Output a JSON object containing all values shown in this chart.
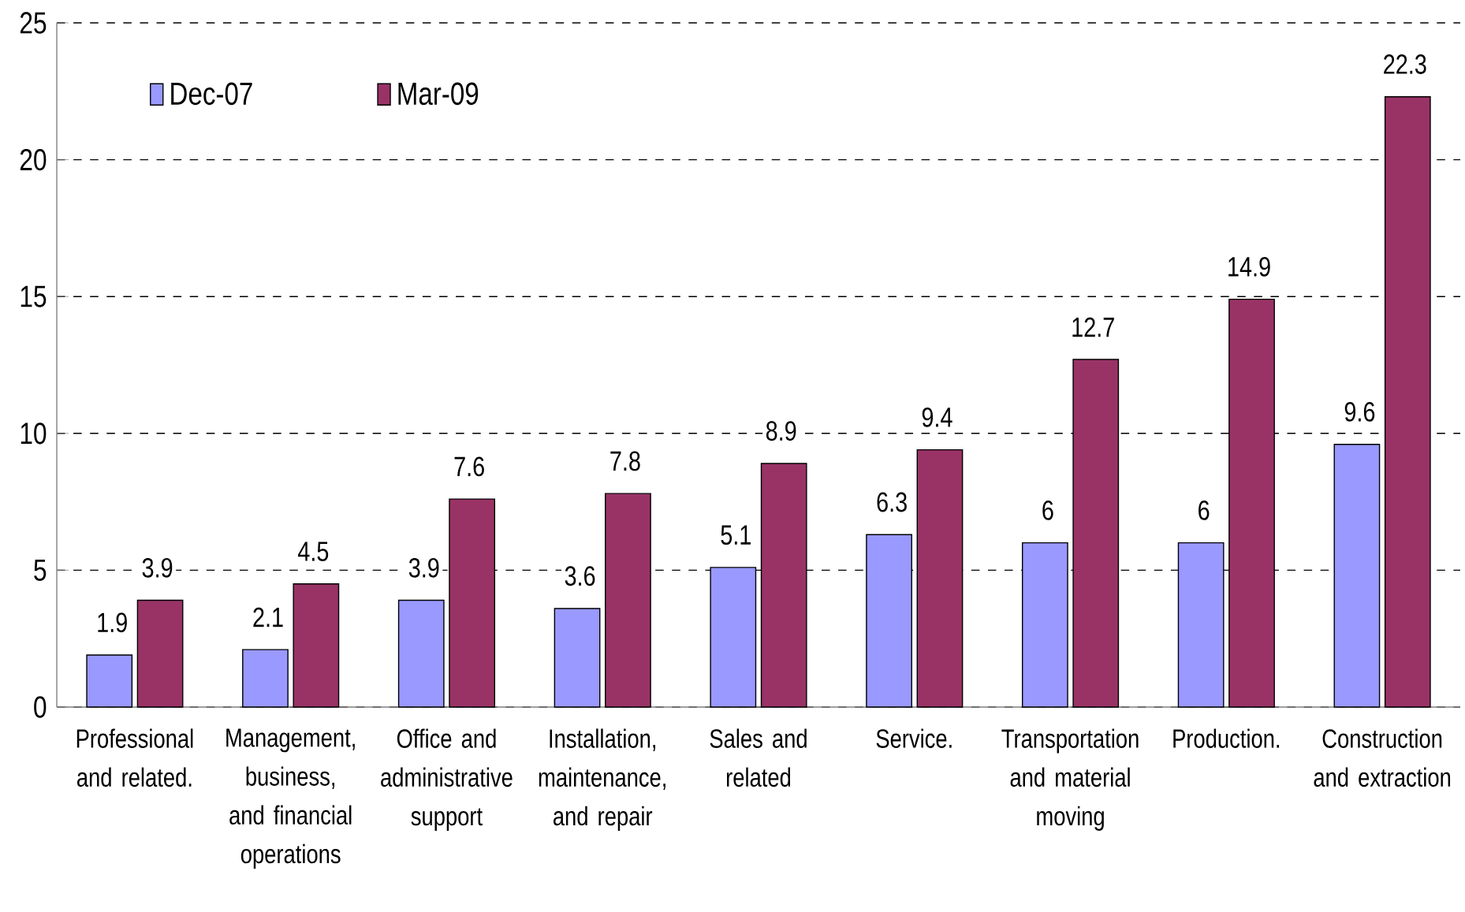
{
  "chart_data": {
    "type": "bar",
    "categories": [
      "Professional and related.",
      "Management, business, and financial operations",
      "Office and administrative support",
      "Installation, maintenance, and repair",
      "Sales and related",
      "Service.",
      "Transportation and material moving",
      "Production.",
      "Construction and extraction"
    ],
    "series": [
      {
        "name": "Dec-07",
        "color": "#9999ff",
        "values": [
          1.9,
          2.1,
          3.9,
          3.6,
          5.1,
          6.3,
          6,
          6,
          9.6
        ]
      },
      {
        "name": "Mar-09",
        "color": "#993366",
        "values": [
          3.9,
          4.5,
          7.6,
          7.8,
          8.9,
          9.4,
          12.7,
          14.9,
          22.3
        ]
      }
    ],
    "ylim": [
      0,
      25
    ],
    "yticks": [
      0,
      5,
      10,
      15,
      20,
      25
    ],
    "grid": "y",
    "legend": "top left",
    "data_labels": true
  }
}
